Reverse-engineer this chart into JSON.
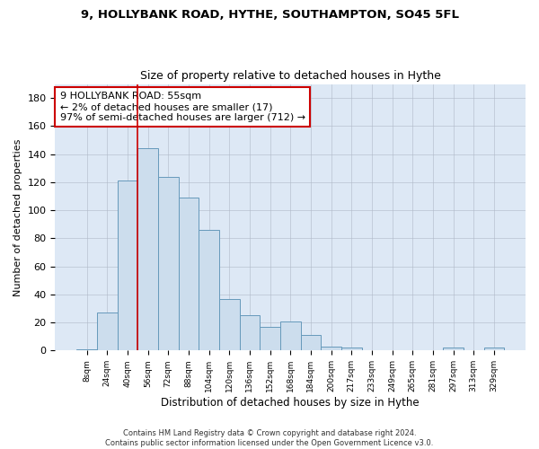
{
  "title": "9, HOLLYBANK ROAD, HYTHE, SOUTHAMPTON, SO45 5FL",
  "subtitle": "Size of property relative to detached houses in Hythe",
  "xlabel": "Distribution of detached houses by size in Hythe",
  "ylabel": "Number of detached properties",
  "bar_color": "#ccdded",
  "bar_edge_color": "#6699bb",
  "background_color": "#dde8f5",
  "categories": [
    "8sqm",
    "24sqm",
    "40sqm",
    "56sqm",
    "72sqm",
    "88sqm",
    "104sqm",
    "120sqm",
    "136sqm",
    "152sqm",
    "168sqm",
    "184sqm",
    "200sqm",
    "217sqm",
    "233sqm",
    "249sqm",
    "265sqm",
    "281sqm",
    "297sqm",
    "313sqm",
    "329sqm"
  ],
  "values": [
    1,
    27,
    121,
    144,
    124,
    109,
    86,
    37,
    25,
    17,
    21,
    11,
    3,
    2,
    0,
    0,
    0,
    0,
    2,
    0,
    2
  ],
  "ylim": [
    0,
    190
  ],
  "yticks": [
    0,
    20,
    40,
    60,
    80,
    100,
    120,
    140,
    160,
    180
  ],
  "vline_x": 2.5,
  "annotation_text": "9 HOLLYBANK ROAD: 55sqm\n← 2% of detached houses are smaller (17)\n97% of semi-detached houses are larger (712) →",
  "annotation_box_color": "#ffffff",
  "annotation_border_color": "#cc0000",
  "footer_line1": "Contains HM Land Registry data © Crown copyright and database right 2024.",
  "footer_line2": "Contains public sector information licensed under the Open Government Licence v3.0."
}
